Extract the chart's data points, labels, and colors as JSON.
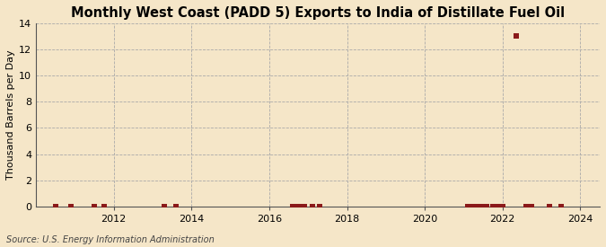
{
  "title": "Monthly West Coast (PADD 5) Exports to India of Distillate Fuel Oil",
  "ylabel": "Thousand Barrels per Day",
  "source": "Source: U.S. Energy Information Administration",
  "background_color": "#f5e6c8",
  "plot_background_color": "#f5e6c8",
  "grid_color": "#aaaaaa",
  "marker_color": "#8b1a1a",
  "xlim": [
    2010.0,
    2024.5
  ],
  "ylim": [
    0,
    14
  ],
  "yticks": [
    0,
    2,
    4,
    6,
    8,
    10,
    12,
    14
  ],
  "xticks": [
    2012,
    2014,
    2016,
    2018,
    2020,
    2022,
    2024
  ],
  "data_points": [
    [
      2010.5,
      0.0
    ],
    [
      2010.9,
      0.0
    ],
    [
      2011.5,
      0.0
    ],
    [
      2011.75,
      0.0
    ],
    [
      2013.3,
      0.0
    ],
    [
      2013.6,
      0.0
    ],
    [
      2016.6,
      0.0
    ],
    [
      2016.7,
      0.0
    ],
    [
      2016.8,
      0.0
    ],
    [
      2016.9,
      0.0
    ],
    [
      2017.1,
      0.0
    ],
    [
      2017.3,
      0.0
    ],
    [
      2021.1,
      0.0
    ],
    [
      2021.25,
      0.0
    ],
    [
      2021.35,
      0.0
    ],
    [
      2021.5,
      0.0
    ],
    [
      2021.6,
      0.0
    ],
    [
      2021.75,
      0.0
    ],
    [
      2021.9,
      0.0
    ],
    [
      2022.0,
      0.0
    ],
    [
      2022.6,
      0.0
    ],
    [
      2022.75,
      0.0
    ],
    [
      2023.2,
      0.0
    ],
    [
      2023.5,
      0.0
    ],
    [
      2022.35,
      13.0
    ]
  ],
  "marker": "s",
  "marker_size": 4,
  "title_fontsize": 10.5,
  "label_fontsize": 8,
  "tick_fontsize": 8,
  "source_fontsize": 7
}
